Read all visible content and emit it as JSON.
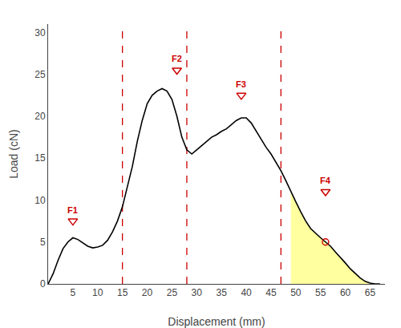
{
  "chart_data": {
    "type": "line",
    "xlabel": "Displacement (mm)",
    "ylabel": "Load (cN)",
    "x": [
      0,
      1,
      2,
      3,
      4,
      5,
      6,
      7,
      8,
      9,
      10,
      11,
      12,
      13,
      14,
      15,
      16,
      17,
      18,
      19,
      20,
      21,
      22,
      23,
      24,
      25,
      26,
      27,
      28,
      29,
      30,
      31,
      32,
      33,
      34,
      35,
      36,
      37,
      38,
      39,
      40,
      41,
      42,
      43,
      44,
      45,
      46,
      47,
      48,
      49,
      50,
      51,
      52,
      53,
      54,
      55,
      56,
      57,
      58,
      59,
      60,
      61,
      62,
      63,
      64,
      65,
      66,
      67
    ],
    "series": [
      {
        "color": "#000000",
        "values": [
          0,
          1.2,
          2.8,
          4.2,
          5.0,
          5.5,
          5.3,
          4.9,
          4.5,
          4.3,
          4.4,
          4.6,
          5.2,
          6.2,
          7.5,
          9.2,
          11.5,
          14.0,
          17.0,
          19.5,
          21.5,
          22.5,
          23.0,
          23.3,
          23.0,
          22.0,
          20.0,
          17.5,
          16.0,
          15.5,
          16.0,
          16.5,
          17.0,
          17.5,
          17.8,
          18.2,
          18.5,
          19.0,
          19.5,
          19.8,
          19.8,
          19.2,
          18.2,
          17.2,
          16.3,
          15.5,
          14.5,
          13.5,
          12.3,
          11.0,
          9.8,
          8.6,
          7.5,
          6.6,
          6.0,
          5.5,
          5.0,
          4.5,
          3.8,
          3.2,
          2.5,
          1.8,
          1.2,
          0.7,
          0.3,
          0.1,
          0.0,
          0.0
        ]
      }
    ],
    "xlim": [
      0,
      68
    ],
    "ylim": [
      0,
      31
    ],
    "xticks": [
      5,
      10,
      15,
      20,
      25,
      30,
      35,
      40,
      45,
      50,
      55,
      60,
      65
    ],
    "yticks": [
      0,
      5,
      10,
      15,
      20,
      25,
      30
    ],
    "grid": false,
    "highlight": {
      "x_start": 49,
      "x_end": 65,
      "color": "#ffffa0"
    },
    "vlines": {
      "x": [
        15,
        28,
        47
      ],
      "color": "#cc0000",
      "line_style": "dashed"
    },
    "annotations": [
      {
        "text": "F1",
        "x": 5,
        "y": 7.5,
        "marker": "triangle-down",
        "color": "#cc0000"
      },
      {
        "text": "F2",
        "x": 26,
        "y": 25.5,
        "marker": "triangle-down",
        "color": "#cc0000"
      },
      {
        "text": "F3",
        "x": 39,
        "y": 22.5,
        "marker": "triangle-down",
        "color": "#cc0000"
      },
      {
        "text": "F4",
        "x": 56,
        "y": 11.0,
        "marker": "triangle-down",
        "color": "#cc0000"
      }
    ],
    "extra_markers": [
      {
        "x": 56,
        "y": 5.0,
        "marker": "circle",
        "color": "#cc0000"
      }
    ]
  }
}
